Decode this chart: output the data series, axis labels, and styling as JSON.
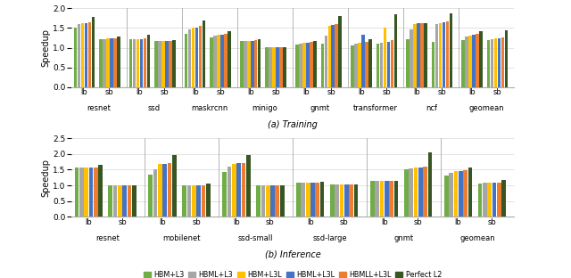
{
  "colors": [
    "#70ad47",
    "#a6a6a6",
    "#ffc000",
    "#4472c4",
    "#ed7d31",
    "#375623"
  ],
  "legend_labels": [
    "HBM+L3",
    "HBML+L3",
    "HBM+L3L",
    "HBML+L3L",
    "HBMLL+L3L",
    "Perfect L2"
  ],
  "training": {
    "groups": [
      "resnet",
      "ssd",
      "maskrcnn",
      "minigo",
      "gnmt",
      "transformer",
      "ncf",
      "geomean"
    ],
    "subgroups": [
      "lb",
      "sb"
    ],
    "ylim": [
      0,
      2.0
    ],
    "yticks": [
      0.0,
      0.5,
      1.0,
      1.5,
      2.0
    ],
    "ylabel": "Speedup",
    "subtitle": "(a) Training",
    "data": {
      "resnet": {
        "lb": [
          1.5,
          1.6,
          1.62,
          1.63,
          1.65,
          1.78
        ],
        "sb": [
          1.22,
          1.22,
          1.23,
          1.23,
          1.24,
          1.29
        ]
      },
      "ssd": {
        "lb": [
          1.21,
          1.21,
          1.22,
          1.22,
          1.23,
          1.32
        ],
        "sb": [
          1.16,
          1.16,
          1.17,
          1.17,
          1.18,
          1.19
        ]
      },
      "maskrcnn": {
        "lb": [
          1.35,
          1.47,
          1.5,
          1.52,
          1.56,
          1.68
        ],
        "sb": [
          1.27,
          1.3,
          1.33,
          1.33,
          1.35,
          1.42
        ]
      },
      "minigo": {
        "lb": [
          1.16,
          1.16,
          1.17,
          1.18,
          1.19,
          1.21
        ],
        "sb": [
          1.01,
          1.01,
          1.01,
          1.01,
          1.01,
          1.02
        ]
      },
      "gnmt": {
        "lb": [
          1.09,
          1.1,
          1.12,
          1.13,
          1.14,
          1.16
        ],
        "sb": [
          1.1,
          1.3,
          1.55,
          1.57,
          1.6,
          1.8
        ]
      },
      "transformer": {
        "lb": [
          1.06,
          1.1,
          1.12,
          1.33,
          1.14,
          1.22
        ],
        "sb": [
          1.1,
          1.12,
          1.5,
          1.15,
          1.2,
          1.85
        ]
      },
      "ncf": {
        "lb": [
          1.22,
          1.47,
          1.6,
          1.62,
          1.62,
          1.63
        ],
        "sb": [
          1.15,
          1.6,
          1.63,
          1.65,
          1.66,
          1.88
        ]
      },
      "geomean": {
        "lb": [
          1.2,
          1.28,
          1.3,
          1.32,
          1.34,
          1.43
        ],
        "sb": [
          1.19,
          1.22,
          1.24,
          1.24,
          1.25,
          1.45
        ]
      }
    }
  },
  "inference": {
    "groups": [
      "resnet",
      "mobilenet",
      "ssd-small",
      "ssd-large",
      "gnmt",
      "geomean"
    ],
    "subgroups": [
      "lb",
      "sb"
    ],
    "ylim": [
      0,
      2.5
    ],
    "yticks": [
      0.0,
      0.5,
      1.0,
      1.5,
      2.0,
      2.5
    ],
    "ylabel": "Speedup",
    "subtitle": "(b) Inference",
    "data": {
      "resnet": {
        "lb": [
          1.56,
          1.56,
          1.57,
          1.58,
          1.58,
          1.66
        ],
        "sb": [
          1.01,
          1.01,
          1.01,
          1.01,
          1.01,
          1.01
        ]
      },
      "mobilenet": {
        "lb": [
          1.33,
          1.52,
          1.69,
          1.69,
          1.7,
          1.96
        ],
        "sb": [
          1.0,
          1.0,
          1.01,
          1.01,
          1.01,
          1.05
        ]
      },
      "ssd-small": {
        "lb": [
          1.43,
          1.6,
          1.69,
          1.71,
          1.72,
          1.96
        ],
        "sb": [
          1.0,
          1.0,
          1.01,
          1.01,
          1.01,
          1.01
        ]
      },
      "ssd-large": {
        "lb": [
          1.09,
          1.09,
          1.1,
          1.1,
          1.1,
          1.11
        ],
        "sb": [
          1.02,
          1.03,
          1.03,
          1.03,
          1.04,
          1.04
        ]
      },
      "gnmt": {
        "lb": [
          1.13,
          1.14,
          1.14,
          1.14,
          1.14,
          1.15
        ],
        "sb": [
          1.5,
          1.53,
          1.57,
          1.58,
          1.6,
          2.05
        ]
      },
      "geomean": {
        "lb": [
          1.3,
          1.4,
          1.44,
          1.46,
          1.47,
          1.56
        ],
        "sb": [
          1.07,
          1.08,
          1.09,
          1.1,
          1.1,
          1.18
        ]
      }
    }
  }
}
